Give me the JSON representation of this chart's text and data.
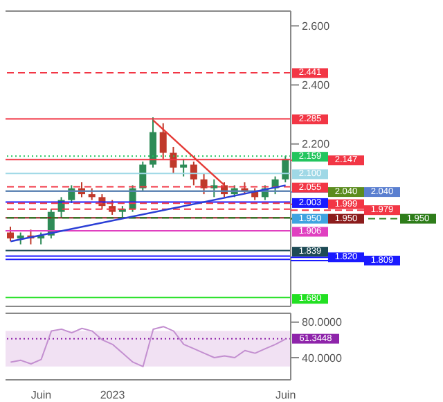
{
  "chart_data": [
    {
      "type": "candlestick",
      "categories": [
        null,
        null,
        null,
        null,
        null,
        null,
        null,
        null,
        null,
        null,
        null,
        null,
        null,
        null,
        null,
        null,
        null,
        null,
        null,
        null,
        null,
        null,
        null,
        null,
        null,
        null,
        null,
        null
      ],
      "ohlc": [
        [
          1.9,
          1.92,
          1.87,
          1.88
        ],
        [
          1.88,
          1.9,
          1.86,
          1.89
        ],
        [
          1.89,
          1.91,
          1.86,
          1.88
        ],
        [
          1.88,
          1.9,
          1.86,
          1.89
        ],
        [
          1.89,
          1.98,
          1.88,
          1.97
        ],
        [
          1.97,
          2.02,
          1.95,
          2.01
        ],
        [
          2.01,
          2.06,
          2.0,
          2.05
        ],
        [
          2.05,
          2.07,
          2.02,
          2.03
        ],
        [
          2.03,
          2.05,
          2.01,
          2.02
        ],
        [
          2.02,
          2.03,
          1.98,
          1.99
        ],
        [
          1.99,
          2.01,
          1.96,
          1.97
        ],
        [
          1.97,
          1.99,
          1.95,
          1.98
        ],
        [
          1.98,
          2.06,
          1.97,
          2.05
        ],
        [
          2.05,
          2.14,
          2.04,
          2.13
        ],
        [
          2.13,
          2.29,
          2.12,
          2.24
        ],
        [
          2.24,
          2.27,
          2.15,
          2.17
        ],
        [
          2.17,
          2.19,
          2.1,
          2.12
        ],
        [
          2.12,
          2.15,
          2.09,
          2.13
        ],
        [
          2.13,
          2.14,
          2.06,
          2.08
        ],
        [
          2.08,
          2.1,
          2.03,
          2.05
        ],
        [
          2.05,
          2.08,
          2.02,
          2.06
        ],
        [
          2.06,
          2.07,
          2.02,
          2.03
        ],
        [
          2.03,
          2.06,
          2.02,
          2.05
        ],
        [
          2.05,
          2.07,
          2.03,
          2.04
        ],
        [
          2.04,
          2.05,
          2.01,
          2.02
        ],
        [
          2.02,
          2.06,
          2.01,
          2.05
        ],
        [
          2.05,
          2.09,
          2.03,
          2.08
        ],
        [
          2.08,
          2.16,
          2.07,
          2.15
        ]
      ],
      "series": [
        {
          "type": "line",
          "color": "#2b3fd6",
          "values": [
            1.87,
            null,
            null,
            null,
            null,
            null,
            null,
            null,
            null,
            null,
            null,
            null,
            null,
            null,
            null,
            null,
            null,
            null,
            null,
            null,
            null,
            null,
            null,
            null,
            null,
            null,
            null,
            2.06
          ]
        },
        {
          "type": "line",
          "color": "#e53935",
          "values": [
            null,
            null,
            null,
            null,
            null,
            null,
            null,
            null,
            null,
            null,
            null,
            null,
            null,
            null,
            2.28,
            null,
            null,
            null,
            null,
            null,
            null,
            2.06,
            null,
            null,
            null,
            null,
            null,
            null
          ]
        }
      ],
      "ylim": [
        1.65,
        2.65
      ],
      "yticks": [
        {
          "value": 2.2,
          "label": "2.200"
        },
        {
          "value": 2.4,
          "label": "2.400"
        },
        {
          "value": 2.6,
          "label": "2.600"
        }
      ],
      "tick_labels": "y",
      "ref_lines": [
        {
          "axis": "y",
          "value": 2.441,
          "label": "2.441",
          "color": "#f23645",
          "line_style": "dashed"
        },
        {
          "axis": "y",
          "value": 2.285,
          "label": "2.285",
          "color": "#f23645",
          "line_style": "solid"
        },
        {
          "axis": "y",
          "value": 2.159,
          "label": "2.159",
          "color": "#22c55e",
          "line_style": "dotted"
        },
        {
          "axis": "y",
          "value": 2.147,
          "label": "2.147",
          "color": "#f23645",
          "line_style": "solid"
        },
        {
          "axis": "y",
          "value": 2.1,
          "label": "2.100",
          "color": "#9fd8e6",
          "line_style": "solid"
        },
        {
          "axis": "y",
          "value": 2.055,
          "label": "2.055",
          "color": "#f23645",
          "line_style": "dashed"
        },
        {
          "axis": "y",
          "value": 2.04,
          "label": "2.040",
          "color": "#5b8c1e",
          "line_style": "solid"
        },
        {
          "axis": "y",
          "value": 2.04,
          "label": "2.040",
          "color": "#5a7fd0",
          "line_style": "solid"
        },
        {
          "axis": "y",
          "value": 2.003,
          "label": "2.003",
          "color": "#1a1aff",
          "line_style": "solid"
        },
        {
          "axis": "y",
          "value": 1.999,
          "label": "1.999",
          "color": "#f23645",
          "line_style": "dashed"
        },
        {
          "axis": "y",
          "value": 1.979,
          "label": "1.979",
          "color": "#f23645",
          "line_style": "dashed"
        },
        {
          "axis": "y",
          "value": 1.95,
          "label": "1.950",
          "color": "#3fa3e0",
          "line_style": "dashed"
        },
        {
          "axis": "y",
          "value": 1.95,
          "label": "1.950",
          "color": "#8b1c1c",
          "line_style": "solid"
        },
        {
          "axis": "y",
          "value": 1.95,
          "label": "1.950",
          "color": "#2e7d1a",
          "line_style": "dashed"
        },
        {
          "axis": "y",
          "value": 1.906,
          "label": "1.906",
          "color": "#e040c0",
          "line_style": "solid"
        },
        {
          "axis": "y",
          "value": 1.839,
          "label": "1.839",
          "color": "#1d4a55",
          "line_style": "solid"
        },
        {
          "axis": "y",
          "value": 1.82,
          "label": "1.820",
          "color": "#1a1aff",
          "line_style": "solid"
        },
        {
          "axis": "y",
          "value": 1.809,
          "label": "1.809",
          "color": "#1a1aff",
          "line_style": "solid"
        },
        {
          "axis": "y",
          "value": 1.68,
          "label": "1.680",
          "color": "#22e022",
          "line_style": "solid"
        }
      ]
    },
    {
      "type": "line",
      "categories": [
        null,
        null,
        null,
        "Juin",
        null,
        null,
        null,
        null,
        null,
        null,
        "2023",
        null,
        null,
        null,
        null,
        null,
        null,
        null,
        null,
        null,
        null,
        null,
        null,
        null,
        null,
        null,
        null,
        "Juin"
      ],
      "values": [
        35,
        37,
        33,
        38,
        70,
        72,
        68,
        73,
        70,
        60,
        55,
        45,
        35,
        30,
        72,
        75,
        70,
        55,
        50,
        45,
        40,
        42,
        40,
        48,
        45,
        50,
        55,
        61
      ],
      "color": "#c38fd0",
      "ylim": [
        15,
        90
      ],
      "yticks": [
        {
          "value": 40,
          "label": "40.0000"
        },
        {
          "value": 80,
          "label": "80.0000"
        }
      ],
      "bands": [
        {
          "axis": "y",
          "from": 30,
          "to": 70,
          "color": "#f1e1f3"
        }
      ],
      "ref_lines": [
        {
          "axis": "y",
          "value": 61.3448,
          "label": "61.3448",
          "color": "#8e24aa",
          "line_style": "dotted"
        }
      ]
    }
  ]
}
